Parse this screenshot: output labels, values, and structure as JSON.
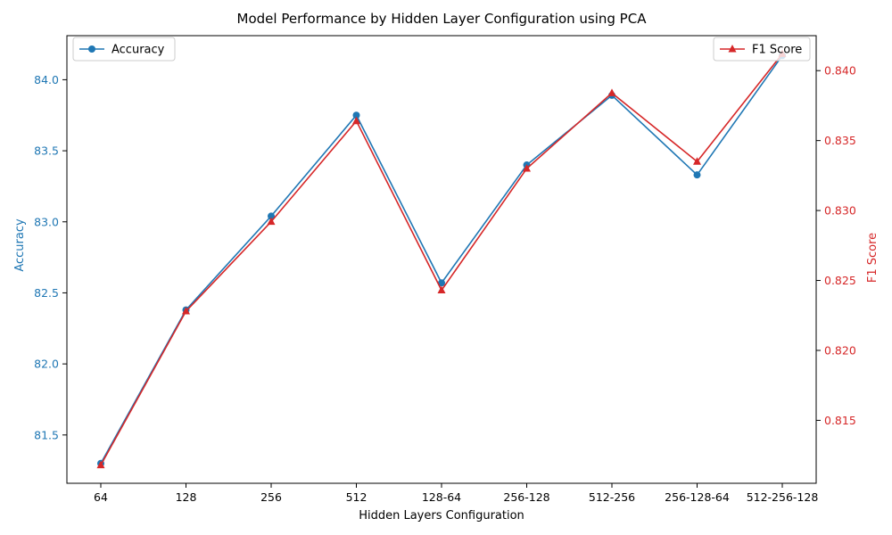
{
  "chart_data": {
    "type": "line",
    "title": "Model Performance by Hidden Layer Configuration using PCA",
    "xlabel": "Hidden Layers Configuration",
    "categories": [
      "64",
      "128",
      "256",
      "512",
      "128-64",
      "256-128",
      "512-256",
      "256-128-64",
      "512-256-128"
    ],
    "y_left": {
      "label": "Accuracy",
      "lim": [
        81.16,
        84.31
      ],
      "ticks": [
        "81.5",
        "82.0",
        "82.5",
        "83.0",
        "83.5",
        "84.0"
      ],
      "color": "#1f77b4"
    },
    "y_right": {
      "label": "F1 Score",
      "lim": [
        0.8105,
        0.8425
      ],
      "ticks": [
        "0.815",
        "0.820",
        "0.825",
        "0.830",
        "0.835",
        "0.840"
      ],
      "color": "#d62728"
    },
    "series": [
      {
        "name": "Accuracy",
        "axis": "left",
        "marker": "circle",
        "color": "#1f77b4",
        "values": [
          81.3,
          82.38,
          83.04,
          83.75,
          82.57,
          83.4,
          83.89,
          83.33,
          84.17
        ]
      },
      {
        "name": "F1 Score",
        "axis": "right",
        "marker": "triangle",
        "color": "#d62728",
        "values": [
          0.8118,
          0.8228,
          0.8292,
          0.8364,
          0.8243,
          0.833,
          0.8384,
          0.8335,
          0.8412
        ]
      }
    ],
    "legend_left_position": "upper-left",
    "legend_right_position": "upper-right",
    "grid": false
  }
}
